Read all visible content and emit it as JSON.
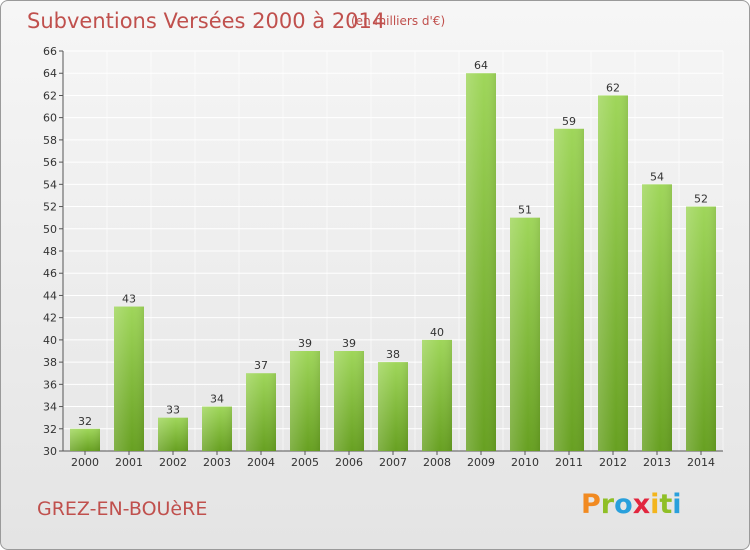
{
  "header": {
    "title": "Subventions Versées 2000 à 2014",
    "unit": "(en milliers d'€)"
  },
  "footer": {
    "commune": "GREZ-EN-BOUèRE",
    "logo_text": "Proxiti"
  },
  "colors": {
    "title": "#c0504d",
    "bar_top": "#9fd65a",
    "bar_bottom": "#6aa324",
    "grid": "#ffffff"
  },
  "chart_data": {
    "type": "bar",
    "title": "Subventions Versées 2000 à 2014",
    "subtitle": "(en milliers d'€)",
    "xlabel": "",
    "ylabel": "",
    "categories": [
      "2000",
      "2001",
      "2002",
      "2003",
      "2004",
      "2005",
      "2006",
      "2007",
      "2008",
      "2009",
      "2010",
      "2011",
      "2012",
      "2013",
      "2014"
    ],
    "values": [
      32,
      43,
      33,
      34,
      37,
      39,
      39,
      38,
      40,
      64,
      51,
      59,
      62,
      54,
      52
    ],
    "ylim": [
      30,
      66
    ],
    "yticks": [
      30,
      32,
      34,
      36,
      38,
      40,
      42,
      44,
      46,
      48,
      50,
      52,
      54,
      56,
      58,
      60,
      62,
      64,
      66
    ],
    "grid": true,
    "legend": "none",
    "data_labels": true
  }
}
